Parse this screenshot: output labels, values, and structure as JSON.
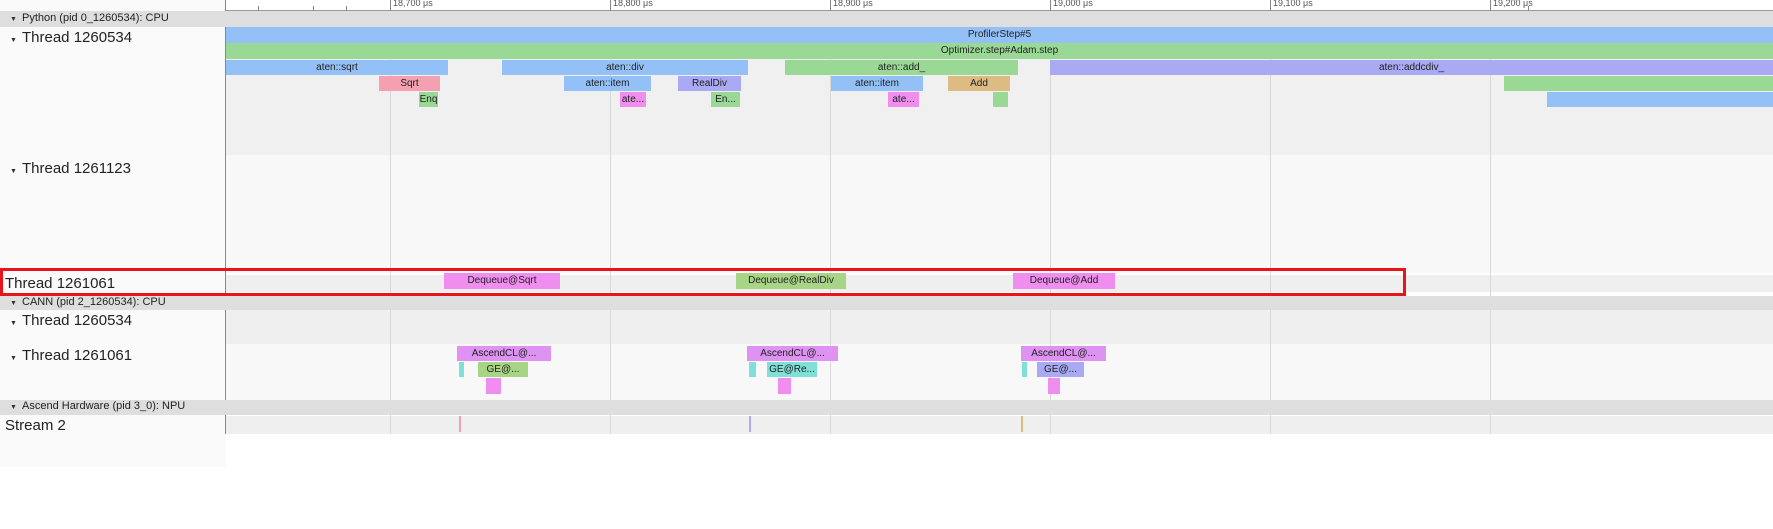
{
  "timeline": {
    "tick_labels": [
      "18,700 μs",
      "18,800 μs",
      "18,900 μs",
      "19,000 μs",
      "19,100 μs",
      "19,200 μs"
    ]
  },
  "processes": {
    "python": "Python (pid 0_1260534): CPU",
    "cann": "CANN (pid 2_1260534): CPU",
    "hardware": "Ascend Hardware (pid 3_0): NPU"
  },
  "threads": {
    "py_1260534": "Thread 1260534",
    "py_1261123": "Thread 1261123",
    "py_1261061": "Thread 1261061",
    "cann_1260534": "Thread 1260534",
    "cann_1261061": "Thread 1261061",
    "stream2": "Stream 2"
  },
  "slices": {
    "profiler_step": "ProfilerStep#5",
    "optimizer_step": "Optimizer.step#Adam.step",
    "aten_sqrt": "aten::sqrt",
    "aten_div": "aten::div",
    "aten_add": "aten::add_",
    "aten_addcdiv": "aten::addcdiv_",
    "sqrt": "Sqrt",
    "aten_item_1": "aten::item",
    "realdiv": "RealDiv",
    "aten_item_2": "aten::item",
    "add": "Add",
    "enq_1": "Enq",
    "ate_1": "ate...",
    "en_2": "En...",
    "ate_2": "ate...",
    "dequeue_sqrt": "Dequeue@Sqrt",
    "dequeue_realdiv": "Dequeue@RealDiv",
    "dequeue_add": "Dequeue@Add",
    "ascendcl_1": "AscendCL@...",
    "ascendcl_2": "AscendCL@...",
    "ascendcl_3": "AscendCL@...",
    "ge_1": "GE@...",
    "ge_2": "GE@Re...",
    "ge_3": "GE@..."
  },
  "colors": {
    "highlight_box": "#e8141a",
    "blue": "#93c0f6",
    "green": "#9ad896",
    "periwinkle": "#a9a9f4",
    "pink": "#f4a0b0",
    "magenta": "#f08ef0",
    "tan": "#dcbc82",
    "olive_green": "#a8d486",
    "violet": "#de92f2",
    "cyan": "#7ee0d6"
  }
}
